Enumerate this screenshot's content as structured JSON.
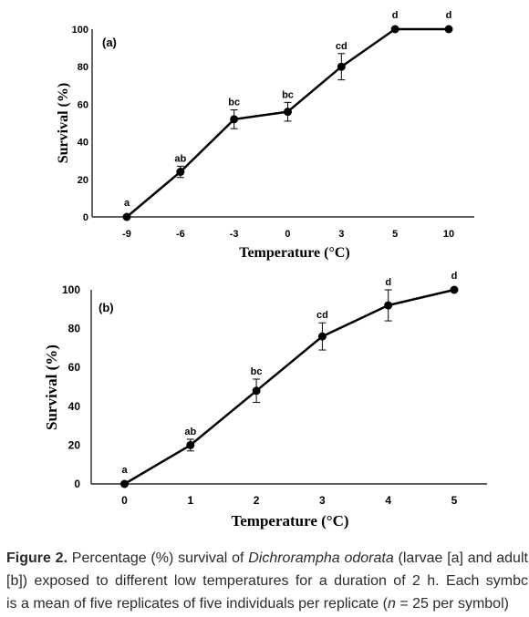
{
  "caption": {
    "label": "Figure 2.",
    "line1_text": "Percentage (%) survival of",
    "species": "Dichrorampha odorata",
    "line1_end": "(larvae [a] and adult",
    "line2": "[b]) exposed to different low temperatures for a duration of 2 h. Each symbc",
    "line3_start": "is a mean of five replicates of five individuals per replicate (",
    "n_symbol": "n",
    "line3_end": "= 25 per symbol)"
  },
  "colors": {
    "ink": "#000000",
    "caption_text": "#2b2b2b"
  },
  "chart_data": [
    {
      "type": "line",
      "panel_label": "(a)",
      "xlabel": "Temperature (°C)",
      "ylabel": "Survival (%)",
      "x": [
        -9,
        -6,
        -3,
        0,
        3,
        5,
        10
      ],
      "y": [
        0,
        24,
        52,
        56,
        80,
        100,
        100
      ],
      "error_bars": [
        0,
        3,
        5,
        5,
        7,
        0,
        0
      ],
      "significance": [
        "a",
        "ab",
        "bc",
        "bc",
        "cd",
        "d",
        "d"
      ],
      "yticks": [
        0,
        20,
        40,
        60,
        80,
        100
      ],
      "ylim": [
        0,
        100
      ],
      "grid": false
    },
    {
      "type": "line",
      "panel_label": "(b)",
      "xlabel": "Temperature (°C)",
      "ylabel": "Survival (%)",
      "x": [
        0,
        1,
        2,
        3,
        4,
        5
      ],
      "y": [
        0,
        20,
        48,
        76,
        92,
        100
      ],
      "error_bars": [
        0,
        3,
        6,
        7,
        8,
        0
      ],
      "significance": [
        "a",
        "ab",
        "bc",
        "cd",
        "d",
        "d"
      ],
      "yticks": [
        0,
        20,
        40,
        60,
        80,
        100
      ],
      "ylim": [
        0,
        100
      ],
      "grid": false
    }
  ]
}
